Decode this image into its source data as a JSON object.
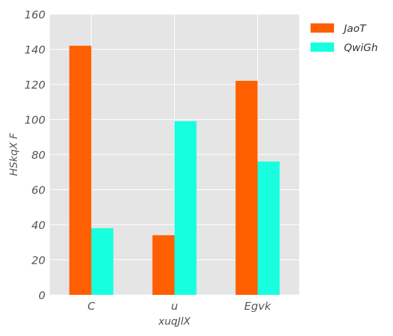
{
  "chart_data": {
    "type": "bar",
    "title": "",
    "xlabel": "xuqJlX",
    "ylabel": "HSkqX F",
    "categories": [
      "C",
      "u",
      "Egvk"
    ],
    "series": [
      {
        "name": "JaoT",
        "values": [
          142,
          34,
          122
        ],
        "color": "#ff5f00"
      },
      {
        "name": "QwiGh",
        "values": [
          38,
          99,
          76
        ],
        "color": "#17ffde"
      }
    ],
    "ylim": [
      0,
      160
    ],
    "yticks": [
      "0",
      "20",
      "40",
      "60",
      "80",
      "100",
      "120",
      "140",
      "160"
    ],
    "grid": true,
    "legend_position": "outside-top-right",
    "background": "#e5e5e5",
    "grid_color": "#ffffff"
  }
}
